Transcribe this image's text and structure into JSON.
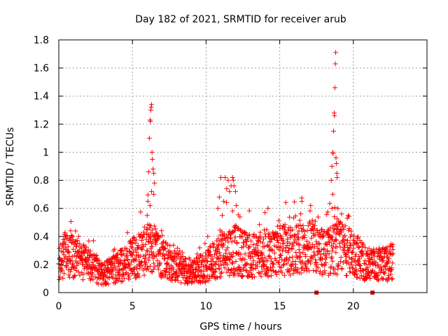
{
  "chart_data": {
    "type": "scatter",
    "title": "Day 182 of 2021, SRMTID for receiver arub",
    "xlabel": "GPS time / hours",
    "ylabel": "SRMTID / TECUs",
    "xlim": [
      0,
      25
    ],
    "ylim": [
      0,
      1.8
    ],
    "xticks": [
      "0",
      "5",
      "10",
      "15",
      "20"
    ],
    "yticks": [
      "0",
      "0.2",
      "0.4",
      "0.6",
      "0.8",
      "1",
      "1.2",
      "1.4",
      "1.6",
      "1.8"
    ],
    "grid": true,
    "marker_color": "#ff0000",
    "x_range": [
      0,
      22.7
    ],
    "baseline_profile": [
      [
        0,
        0.2
      ],
      [
        0.4,
        0.28
      ],
      [
        1.0,
        0.25
      ],
      [
        2.0,
        0.2
      ],
      [
        3.0,
        0.13
      ],
      [
        4.0,
        0.18
      ],
      [
        5.0,
        0.24
      ],
      [
        5.6,
        0.28
      ],
      [
        6.3,
        0.32
      ],
      [
        7.0,
        0.26
      ],
      [
        8.0,
        0.18
      ],
      [
        9.0,
        0.15
      ],
      [
        10.0,
        0.18
      ],
      [
        10.7,
        0.25
      ],
      [
        11.5,
        0.3
      ],
      [
        12.0,
        0.3
      ],
      [
        13.0,
        0.26
      ],
      [
        14.0,
        0.28
      ],
      [
        15.0,
        0.3
      ],
      [
        16.0,
        0.3
      ],
      [
        17.0,
        0.32
      ],
      [
        18.0,
        0.28
      ],
      [
        19.0,
        0.32
      ],
      [
        20.0,
        0.28
      ],
      [
        21.0,
        0.2
      ],
      [
        22.0,
        0.2
      ],
      [
        22.7,
        0.22
      ]
    ],
    "spike_points": [
      [
        6.05,
        0.65
      ],
      [
        6.1,
        0.86
      ],
      [
        6.15,
        1.1
      ],
      [
        6.2,
        1.23
      ],
      [
        6.22,
        1.22
      ],
      [
        6.25,
        1.3
      ],
      [
        6.27,
        1.32
      ],
      [
        6.3,
        1.34
      ],
      [
        6.33,
        1.0
      ],
      [
        6.35,
        0.95
      ],
      [
        6.4,
        0.88
      ],
      [
        6.45,
        0.85
      ],
      [
        6.5,
        0.78
      ],
      [
        6.3,
        0.72
      ],
      [
        6.2,
        0.62
      ],
      [
        6.0,
        0.55
      ],
      [
        6.45,
        0.7
      ],
      [
        10.8,
        0.6
      ],
      [
        10.9,
        0.68
      ],
      [
        11.0,
        0.82
      ],
      [
        11.3,
        0.82
      ],
      [
        11.4,
        0.74
      ],
      [
        11.5,
        0.8
      ],
      [
        11.6,
        0.72
      ],
      [
        11.7,
        0.76
      ],
      [
        11.8,
        0.82
      ],
      [
        11.85,
        0.8
      ],
      [
        11.9,
        0.76
      ],
      [
        12.0,
        0.72
      ],
      [
        12.05,
        0.62
      ],
      [
        11.2,
        0.65
      ],
      [
        11.1,
        0.55
      ],
      [
        16.5,
        0.65
      ],
      [
        17.1,
        0.62
      ],
      [
        14.2,
        0.6
      ],
      [
        18.5,
        0.8
      ],
      [
        18.55,
        0.9
      ],
      [
        18.6,
        1.0
      ],
      [
        18.62,
        0.99
      ],
      [
        18.65,
        1.15
      ],
      [
        18.7,
        1.28
      ],
      [
        18.72,
        1.26
      ],
      [
        18.75,
        1.46
      ],
      [
        18.78,
        1.63
      ],
      [
        18.8,
        1.71
      ],
      [
        18.82,
        0.96
      ],
      [
        18.85,
        0.92
      ],
      [
        18.88,
        0.85
      ],
      [
        18.9,
        0.82
      ],
      [
        18.55,
        0.6
      ],
      [
        18.6,
        0.7
      ],
      [
        18.95,
        0.6
      ]
    ],
    "isolated_zero_points": [
      17.5,
      21.3
    ]
  }
}
